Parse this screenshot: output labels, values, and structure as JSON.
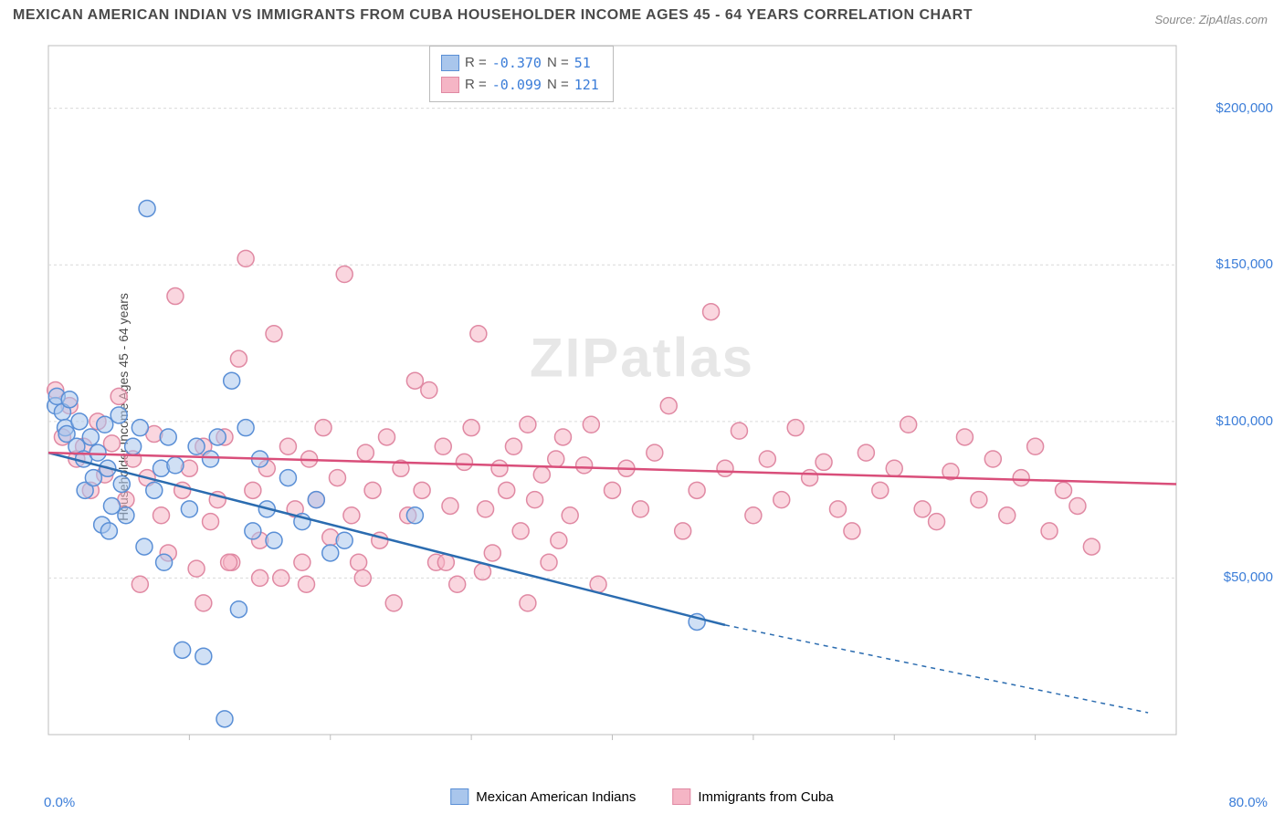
{
  "title": "MEXICAN AMERICAN INDIAN VS IMMIGRANTS FROM CUBA HOUSEHOLDER INCOME AGES 45 - 64 YEARS CORRELATION CHART",
  "source": "Source: ZipAtlas.com",
  "ylabel": "Householder Income Ages 45 - 64 years",
  "watermark_bold": "ZIP",
  "watermark_rest": "atlas",
  "chart": {
    "type": "scatter",
    "background_color": "#ffffff",
    "grid_color": "#d9d9d9",
    "xlim": [
      0,
      80
    ],
    "ylim": [
      0,
      220000
    ],
    "xaxis_labels": [
      {
        "pos": 0.0,
        "text": "0.0%"
      },
      {
        "pos": 80.0,
        "text": "80.0%"
      }
    ],
    "yaxis_ticks": [
      {
        "value": 50000,
        "text": "$50,000"
      },
      {
        "value": 100000,
        "text": "$100,000"
      },
      {
        "value": 150000,
        "text": "$150,000"
      },
      {
        "value": 200000,
        "text": "$200,000"
      }
    ],
    "x_gridlines": [
      10,
      20,
      30,
      40,
      50,
      60,
      70
    ],
    "y_gridlines": [
      50000,
      100000,
      150000,
      200000
    ],
    "marker_radius": 9,
    "marker_stroke_width": 1.5,
    "series": [
      {
        "name": "Mexican American Indians",
        "fill_color": "#a9c6ec",
        "fill_opacity": 0.55,
        "stroke_color": "#5a8fd6",
        "line_color": "#2b6cb0",
        "line_width": 2.5,
        "r_value": "-0.370",
        "n_value": "51",
        "regression": {
          "x1": 0,
          "y1": 90000,
          "x2": 48,
          "y2": 35000,
          "dash_from": 48,
          "dash_to": 78,
          "y_dash_end": 7000
        },
        "points": [
          [
            0.5,
            105000
          ],
          [
            0.6,
            108000
          ],
          [
            1.0,
            103000
          ],
          [
            1.2,
            98000
          ],
          [
            1.3,
            96000
          ],
          [
            1.5,
            107000
          ],
          [
            2.0,
            92000
          ],
          [
            2.2,
            100000
          ],
          [
            2.5,
            88000
          ],
          [
            2.6,
            78000
          ],
          [
            3.0,
            95000
          ],
          [
            3.2,
            82000
          ],
          [
            3.5,
            90000
          ],
          [
            4.0,
            99000
          ],
          [
            4.2,
            85000
          ],
          [
            4.5,
            73000
          ],
          [
            5.0,
            102000
          ],
          [
            5.2,
            80000
          ],
          [
            5.5,
            70000
          ],
          [
            6.0,
            92000
          ],
          [
            6.5,
            98000
          ],
          [
            7.0,
            168000
          ],
          [
            7.5,
            78000
          ],
          [
            8.0,
            85000
          ],
          [
            8.5,
            95000
          ],
          [
            9.0,
            86000
          ],
          [
            9.5,
            27000
          ],
          [
            10.0,
            72000
          ],
          [
            10.5,
            92000
          ],
          [
            11.0,
            25000
          ],
          [
            11.5,
            88000
          ],
          [
            12.0,
            95000
          ],
          [
            12.5,
            5000
          ],
          [
            13.0,
            113000
          ],
          [
            13.5,
            40000
          ],
          [
            14.0,
            98000
          ],
          [
            14.5,
            65000
          ],
          [
            15.0,
            88000
          ],
          [
            15.5,
            72000
          ],
          [
            16.0,
            62000
          ],
          [
            17.0,
            82000
          ],
          [
            18.0,
            68000
          ],
          [
            19.0,
            75000
          ],
          [
            20.0,
            58000
          ],
          [
            21.0,
            62000
          ],
          [
            26.0,
            70000
          ],
          [
            46.0,
            36000
          ],
          [
            3.8,
            67000
          ],
          [
            4.3,
            65000
          ],
          [
            6.8,
            60000
          ],
          [
            8.2,
            55000
          ]
        ]
      },
      {
        "name": "Immigrants from Cuba",
        "fill_color": "#f5b5c5",
        "fill_opacity": 0.55,
        "stroke_color": "#e089a3",
        "line_color": "#d94e7a",
        "line_width": 2.5,
        "r_value": "-0.099",
        "n_value": "121",
        "regression": {
          "x1": 0,
          "y1": 90000,
          "x2": 80,
          "y2": 80000
        },
        "points": [
          [
            0.5,
            110000
          ],
          [
            1.0,
            95000
          ],
          [
            1.5,
            105000
          ],
          [
            2.0,
            88000
          ],
          [
            2.5,
            92000
          ],
          [
            3.0,
            78000
          ],
          [
            3.5,
            100000
          ],
          [
            4.0,
            83000
          ],
          [
            4.5,
            93000
          ],
          [
            5.0,
            108000
          ],
          [
            5.5,
            75000
          ],
          [
            6.0,
            88000
          ],
          [
            6.5,
            48000
          ],
          [
            7.0,
            82000
          ],
          [
            7.5,
            96000
          ],
          [
            8.0,
            70000
          ],
          [
            8.5,
            58000
          ],
          [
            9.0,
            140000
          ],
          [
            9.5,
            78000
          ],
          [
            10.0,
            85000
          ],
          [
            10.5,
            53000
          ],
          [
            11.0,
            92000
          ],
          [
            11.5,
            68000
          ],
          [
            12.0,
            75000
          ],
          [
            12.5,
            95000
          ],
          [
            13.0,
            55000
          ],
          [
            13.5,
            120000
          ],
          [
            14.0,
            152000
          ],
          [
            14.5,
            78000
          ],
          [
            15.0,
            62000
          ],
          [
            15.5,
            85000
          ],
          [
            16.0,
            128000
          ],
          [
            16.5,
            50000
          ],
          [
            17.0,
            92000
          ],
          [
            17.5,
            72000
          ],
          [
            18.0,
            55000
          ],
          [
            18.5,
            88000
          ],
          [
            19.0,
            75000
          ],
          [
            19.5,
            98000
          ],
          [
            20.0,
            63000
          ],
          [
            20.5,
            82000
          ],
          [
            21.0,
            147000
          ],
          [
            21.5,
            70000
          ],
          [
            22.0,
            55000
          ],
          [
            22.5,
            90000
          ],
          [
            23.0,
            78000
          ],
          [
            23.5,
            62000
          ],
          [
            24.0,
            95000
          ],
          [
            24.5,
            42000
          ],
          [
            25.0,
            85000
          ],
          [
            25.5,
            70000
          ],
          [
            26.0,
            113000
          ],
          [
            26.5,
            78000
          ],
          [
            27.0,
            110000
          ],
          [
            27.5,
            55000
          ],
          [
            28.0,
            92000
          ],
          [
            28.5,
            73000
          ],
          [
            29.0,
            48000
          ],
          [
            29.5,
            87000
          ],
          [
            30.0,
            98000
          ],
          [
            30.5,
            128000
          ],
          [
            31.0,
            72000
          ],
          [
            31.5,
            58000
          ],
          [
            32.0,
            85000
          ],
          [
            32.5,
            78000
          ],
          [
            33.0,
            92000
          ],
          [
            33.5,
            65000
          ],
          [
            34.0,
            99000
          ],
          [
            34.5,
            75000
          ],
          [
            35.0,
            83000
          ],
          [
            35.5,
            55000
          ],
          [
            36.0,
            88000
          ],
          [
            36.5,
            95000
          ],
          [
            37.0,
            70000
          ],
          [
            38.0,
            86000
          ],
          [
            38.5,
            99000
          ],
          [
            39.0,
            48000
          ],
          [
            40.0,
            78000
          ],
          [
            41.0,
            85000
          ],
          [
            42.0,
            72000
          ],
          [
            43.0,
            90000
          ],
          [
            44.0,
            105000
          ],
          [
            45.0,
            65000
          ],
          [
            46.0,
            78000
          ],
          [
            47.0,
            135000
          ],
          [
            48.0,
            85000
          ],
          [
            49.0,
            97000
          ],
          [
            50.0,
            70000
          ],
          [
            51.0,
            88000
          ],
          [
            52.0,
            75000
          ],
          [
            53.0,
            98000
          ],
          [
            54.0,
            82000
          ],
          [
            55.0,
            87000
          ],
          [
            56.0,
            72000
          ],
          [
            57.0,
            65000
          ],
          [
            58.0,
            90000
          ],
          [
            59.0,
            78000
          ],
          [
            60.0,
            85000
          ],
          [
            61.0,
            99000
          ],
          [
            62.0,
            72000
          ],
          [
            63.0,
            68000
          ],
          [
            64.0,
            84000
          ],
          [
            65.0,
            95000
          ],
          [
            66.0,
            75000
          ],
          [
            67.0,
            88000
          ],
          [
            68.0,
            70000
          ],
          [
            69.0,
            82000
          ],
          [
            70.0,
            92000
          ],
          [
            71.0,
            65000
          ],
          [
            72.0,
            78000
          ],
          [
            73.0,
            73000
          ],
          [
            74.0,
            60000
          ],
          [
            34.0,
            42000
          ],
          [
            15.0,
            50000
          ],
          [
            11.0,
            42000
          ],
          [
            12.8,
            55000
          ],
          [
            18.3,
            48000
          ],
          [
            22.3,
            50000
          ],
          [
            28.2,
            55000
          ],
          [
            30.8,
            52000
          ],
          [
            36.2,
            62000
          ]
        ]
      }
    ],
    "legend_stats_labels": {
      "r": "R = ",
      "n": "N = "
    },
    "bottom_legend": [
      {
        "series": 0
      },
      {
        "series": 1
      }
    ]
  }
}
